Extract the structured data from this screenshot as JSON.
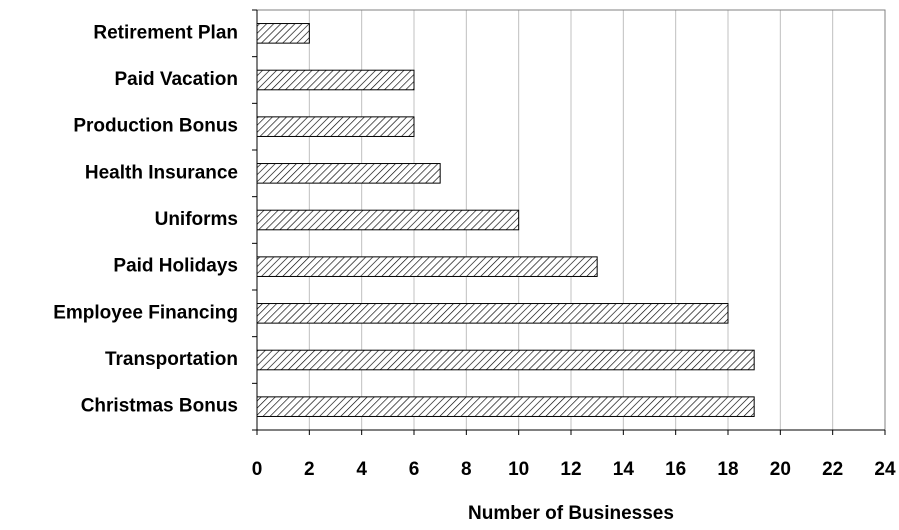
{
  "chart_data": {
    "type": "bar",
    "orientation": "horizontal",
    "categories": [
      "Retirement Plan",
      "Paid Vacation",
      "Production Bonus",
      "Health Insurance",
      "Uniforms",
      "Paid Holidays",
      "Employee Financing",
      "Transportation",
      "Christmas Bonus"
    ],
    "values": [
      2,
      6,
      6,
      7,
      10,
      13,
      18,
      19,
      19
    ],
    "xlabel": "Number of Businesses",
    "ylabel": "",
    "xlim": [
      0,
      24
    ],
    "xticks": [
      "0",
      "2",
      "4",
      "6",
      "8",
      "10",
      "12",
      "14",
      "16",
      "18",
      "20",
      "22",
      "24"
    ],
    "grid": "vertical",
    "bar_fill": "diagonal-hatch",
    "colors": {
      "bar_stroke": "#000000",
      "hatch": "#000000",
      "grid": "#c0c0c0",
      "background": "#ffffff"
    }
  }
}
